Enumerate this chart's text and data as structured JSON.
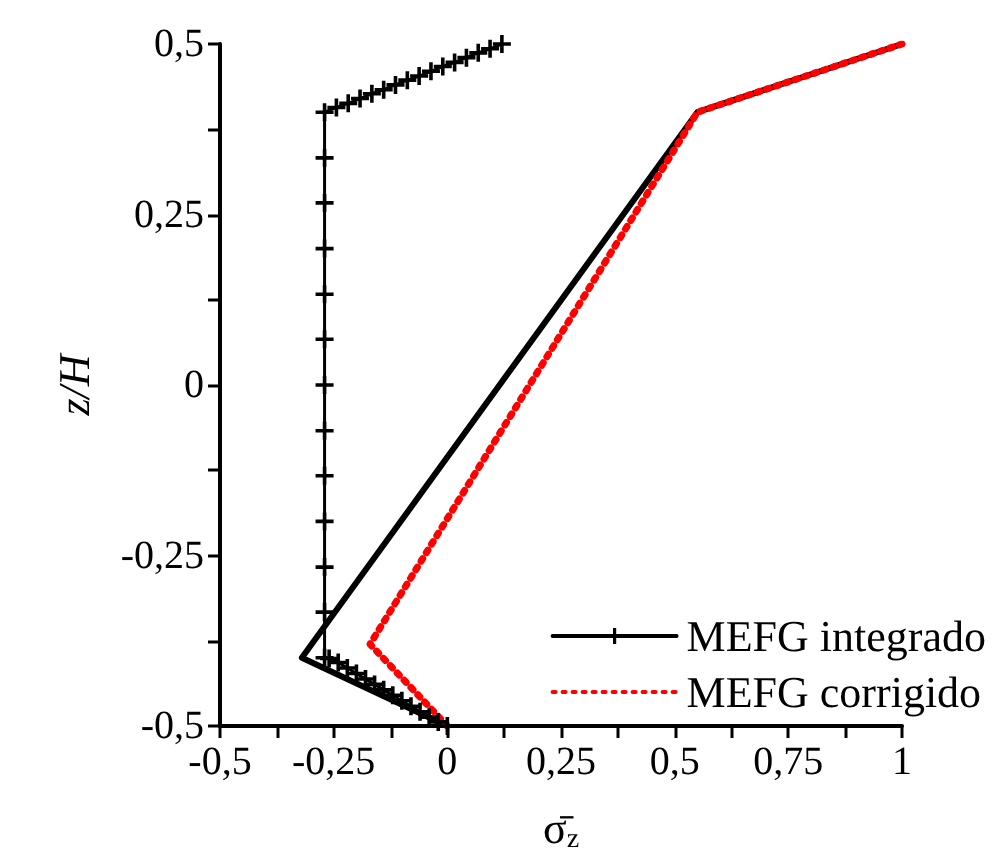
{
  "chart_data": {
    "type": "line",
    "xlabel": "σ̄$_{z}$",
    "ylabel": "z/H",
    "xlim": [
      -0.5,
      1
    ],
    "ylim": [
      -0.5,
      0.5
    ],
    "xticks": [
      {
        "value": -0.5,
        "label": "-0,5"
      },
      {
        "value": -0.375,
        "label": null
      },
      {
        "value": -0.25,
        "label": "-0,25"
      },
      {
        "value": -0.125,
        "label": null
      },
      {
        "value": 0,
        "label": "0"
      },
      {
        "value": 0.125,
        "label": null
      },
      {
        "value": 0.25,
        "label": "0,25"
      },
      {
        "value": 0.375,
        "label": null
      },
      {
        "value": 0.5,
        "label": "0,5"
      },
      {
        "value": 0.625,
        "label": null
      },
      {
        "value": 0.75,
        "label": "0,75"
      },
      {
        "value": 0.875,
        "label": null
      },
      {
        "value": 1,
        "label": "1"
      }
    ],
    "yticks": [
      {
        "value": -0.5,
        "label": "-0,5"
      },
      {
        "value": -0.375,
        "label": null
      },
      {
        "value": -0.25,
        "label": "-0,25"
      },
      {
        "value": -0.125,
        "label": null
      },
      {
        "value": 0,
        "label": "0"
      },
      {
        "value": 0.125,
        "label": null
      },
      {
        "value": 0.25,
        "label": "0,25"
      },
      {
        "value": 0.375,
        "label": null
      },
      {
        "value": 0.5,
        "label": "0,5"
      }
    ],
    "grid": false,
    "legend": "bottom right",
    "series": [
      {
        "color": "#000000",
        "line_style": "solid",
        "marker": "none",
        "x": [
          0,
          -0.32,
          0.55,
          1
        ],
        "values": [
          -0.5,
          -0.4,
          0.4,
          0.5
        ]
      },
      {
        "name": "MEFG integrado",
        "color": "#000000",
        "line_style": "solid",
        "marker": "cross",
        "x": [
          0,
          -0.02,
          -0.04,
          -0.06,
          -0.08,
          -0.1,
          -0.12,
          -0.14,
          -0.16,
          -0.18,
          -0.2,
          -0.22,
          -0.24,
          -0.26,
          -0.27,
          -0.27,
          -0.27,
          -0.27,
          -0.27,
          -0.27,
          -0.27,
          -0.27,
          -0.27,
          -0.27,
          -0.27,
          -0.27,
          -0.27,
          -0.244,
          -0.218,
          -0.192,
          -0.166,
          -0.14,
          -0.114,
          -0.088,
          -0.062,
          -0.036,
          -0.01,
          0.016,
          0.042,
          0.068,
          0.094,
          0.12
        ],
        "values": [
          -0.5,
          -0.494,
          -0.487,
          -0.479,
          -0.471,
          -0.463,
          -0.455,
          -0.447,
          -0.439,
          -0.431,
          -0.423,
          -0.415,
          -0.407,
          -0.401,
          -0.4,
          -0.333,
          -0.267,
          -0.2,
          -0.133,
          -0.067,
          0,
          0.067,
          0.133,
          0.2,
          0.267,
          0.333,
          0.4,
          0.407,
          0.413,
          0.42,
          0.427,
          0.433,
          0.44,
          0.447,
          0.453,
          0.46,
          0.467,
          0.473,
          0.48,
          0.487,
          0.493,
          0.5
        ]
      },
      {
        "name": "MEFG corrigido",
        "color": "#ff0000",
        "line_style": "dotted",
        "marker": "none",
        "x": [
          0,
          -0.17,
          0.55,
          1
        ],
        "values": [
          -0.5,
          -0.38,
          0.4,
          0.5
        ]
      }
    ]
  }
}
